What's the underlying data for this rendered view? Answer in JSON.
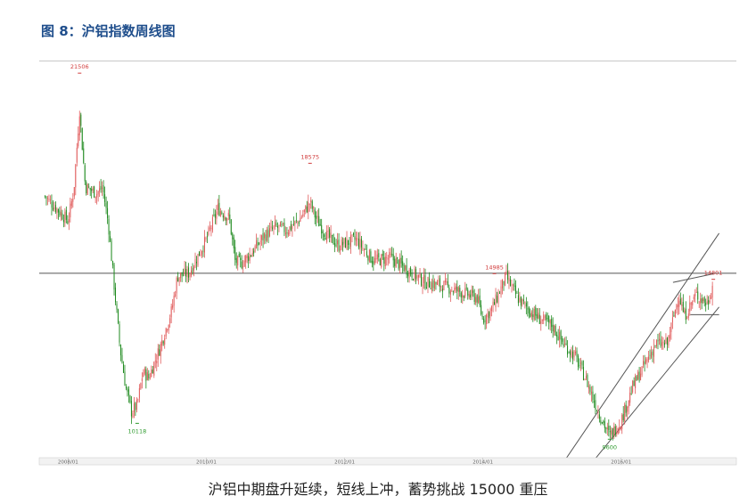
{
  "figure": {
    "title": "图 8：沪铝指数周线图",
    "caption": "沪铝中期盘升延续，短线上冲，蓄势挑战 15000 重压"
  },
  "chart_data": {
    "type": "candlestick",
    "title": "",
    "xlabel": "",
    "ylabel": "",
    "x_ticks": [
      "2008/01",
      "2010/01",
      "2012/01",
      "2014/01",
      "2016/01"
    ],
    "ylim": [
      9000,
      21800
    ],
    "grid": false,
    "colors": {
      "up": "#e05a5a",
      "down": "#1f8a1f",
      "annot_high": "#d13b3b",
      "annot_low": "#2e9a2e",
      "line": "#555555"
    },
    "annotations": [
      {
        "label": "21506",
        "date": "2008/03",
        "value": 21506,
        "kind": "high"
      },
      {
        "label": "10118",
        "date": "2009/01",
        "value": 10118,
        "kind": "low"
      },
      {
        "label": "18575",
        "date": "2011/07",
        "value": 18575,
        "kind": "high"
      },
      {
        "label": "14985",
        "date": "2014/03",
        "value": 14985,
        "kind": "high"
      },
      {
        "label": "9600",
        "date": "2015/11",
        "value": 9600,
        "kind": "low"
      },
      {
        "label": "14801",
        "date": "2017/05",
        "value": 14801,
        "kind": "high"
      }
    ],
    "horizontal_lines": [
      {
        "value": 15000
      },
      {
        "value": 13650
      }
    ],
    "trend_channel": {
      "lower": [
        {
          "date": "2015/08",
          "value": 8850
        },
        {
          "date": "2017/06",
          "value": 13900
        }
      ],
      "upper": [
        {
          "date": "2015/03",
          "value": 8850
        },
        {
          "date": "2017/06",
          "value": 16300
        }
      ],
      "resistance": [
        {
          "date": "2016/10",
          "value": 14700
        },
        {
          "date": "2017/05",
          "value": 14980
        }
      ]
    },
    "path": [
      [
        "2007/09",
        17500
      ],
      [
        "2007/11",
        17100
      ],
      [
        "2008/01",
        16700
      ],
      [
        "2008/02",
        17700
      ],
      [
        "2008/03",
        20300
      ],
      [
        "2008/04",
        17800
      ],
      [
        "2008/06",
        17600
      ],
      [
        "2008/07",
        17800
      ],
      [
        "2008/08",
        16600
      ],
      [
        "2008/09",
        14600
      ],
      [
        "2008/10",
        12600
      ],
      [
        "2008/11",
        11300
      ],
      [
        "2008/12",
        10500
      ],
      [
        "2009/01",
        10700
      ],
      [
        "2009/02",
        11800
      ],
      [
        "2009/03",
        11600
      ],
      [
        "2009/05",
        12600
      ],
      [
        "2009/07",
        13800
      ],
      [
        "2009/08",
        14900
      ],
      [
        "2009/10",
        15000
      ],
      [
        "2010/01",
        16100
      ],
      [
        "2010/03",
        17100
      ],
      [
        "2010/05",
        16800
      ],
      [
        "2010/06",
        15400
      ],
      [
        "2010/07",
        15300
      ],
      [
        "2010/09",
        15700
      ],
      [
        "2010/11",
        16200
      ],
      [
        "2011/01",
        16500
      ],
      [
        "2011/03",
        16400
      ],
      [
        "2011/05",
        16700
      ],
      [
        "2011/07",
        17300
      ],
      [
        "2011/08",
        16800
      ],
      [
        "2011/10",
        16200
      ],
      [
        "2011/12",
        15900
      ],
      [
        "2012/03",
        16100
      ],
      [
        "2012/06",
        15400
      ],
      [
        "2012/09",
        15500
      ],
      [
        "2012/12",
        15100
      ],
      [
        "2013/03",
        14700
      ],
      [
        "2013/06",
        14600
      ],
      [
        "2013/09",
        14400
      ],
      [
        "2013/12",
        14200
      ],
      [
        "2014/01",
        13500
      ],
      [
        "2014/02",
        13700
      ],
      [
        "2014/03",
        14000
      ],
      [
        "2014/05",
        14900
      ],
      [
        "2014/07",
        14200
      ],
      [
        "2014/09",
        13800
      ],
      [
        "2014/11",
        13500
      ],
      [
        "2015/01",
        13300
      ],
      [
        "2015/03",
        12700
      ],
      [
        "2015/05",
        12300
      ],
      [
        "2015/07",
        11500
      ],
      [
        "2015/09",
        10500
      ],
      [
        "2015/11",
        9700
      ],
      [
        "2016/01",
        10200
      ],
      [
        "2016/03",
        11300
      ],
      [
        "2016/05",
        12000
      ],
      [
        "2016/07",
        12700
      ],
      [
        "2016/09",
        12700
      ],
      [
        "2016/11",
        14300
      ],
      [
        "2016/12",
        13600
      ],
      [
        "2017/02",
        14300
      ],
      [
        "2017/04",
        14000
      ],
      [
        "2017/05",
        14700
      ]
    ]
  }
}
